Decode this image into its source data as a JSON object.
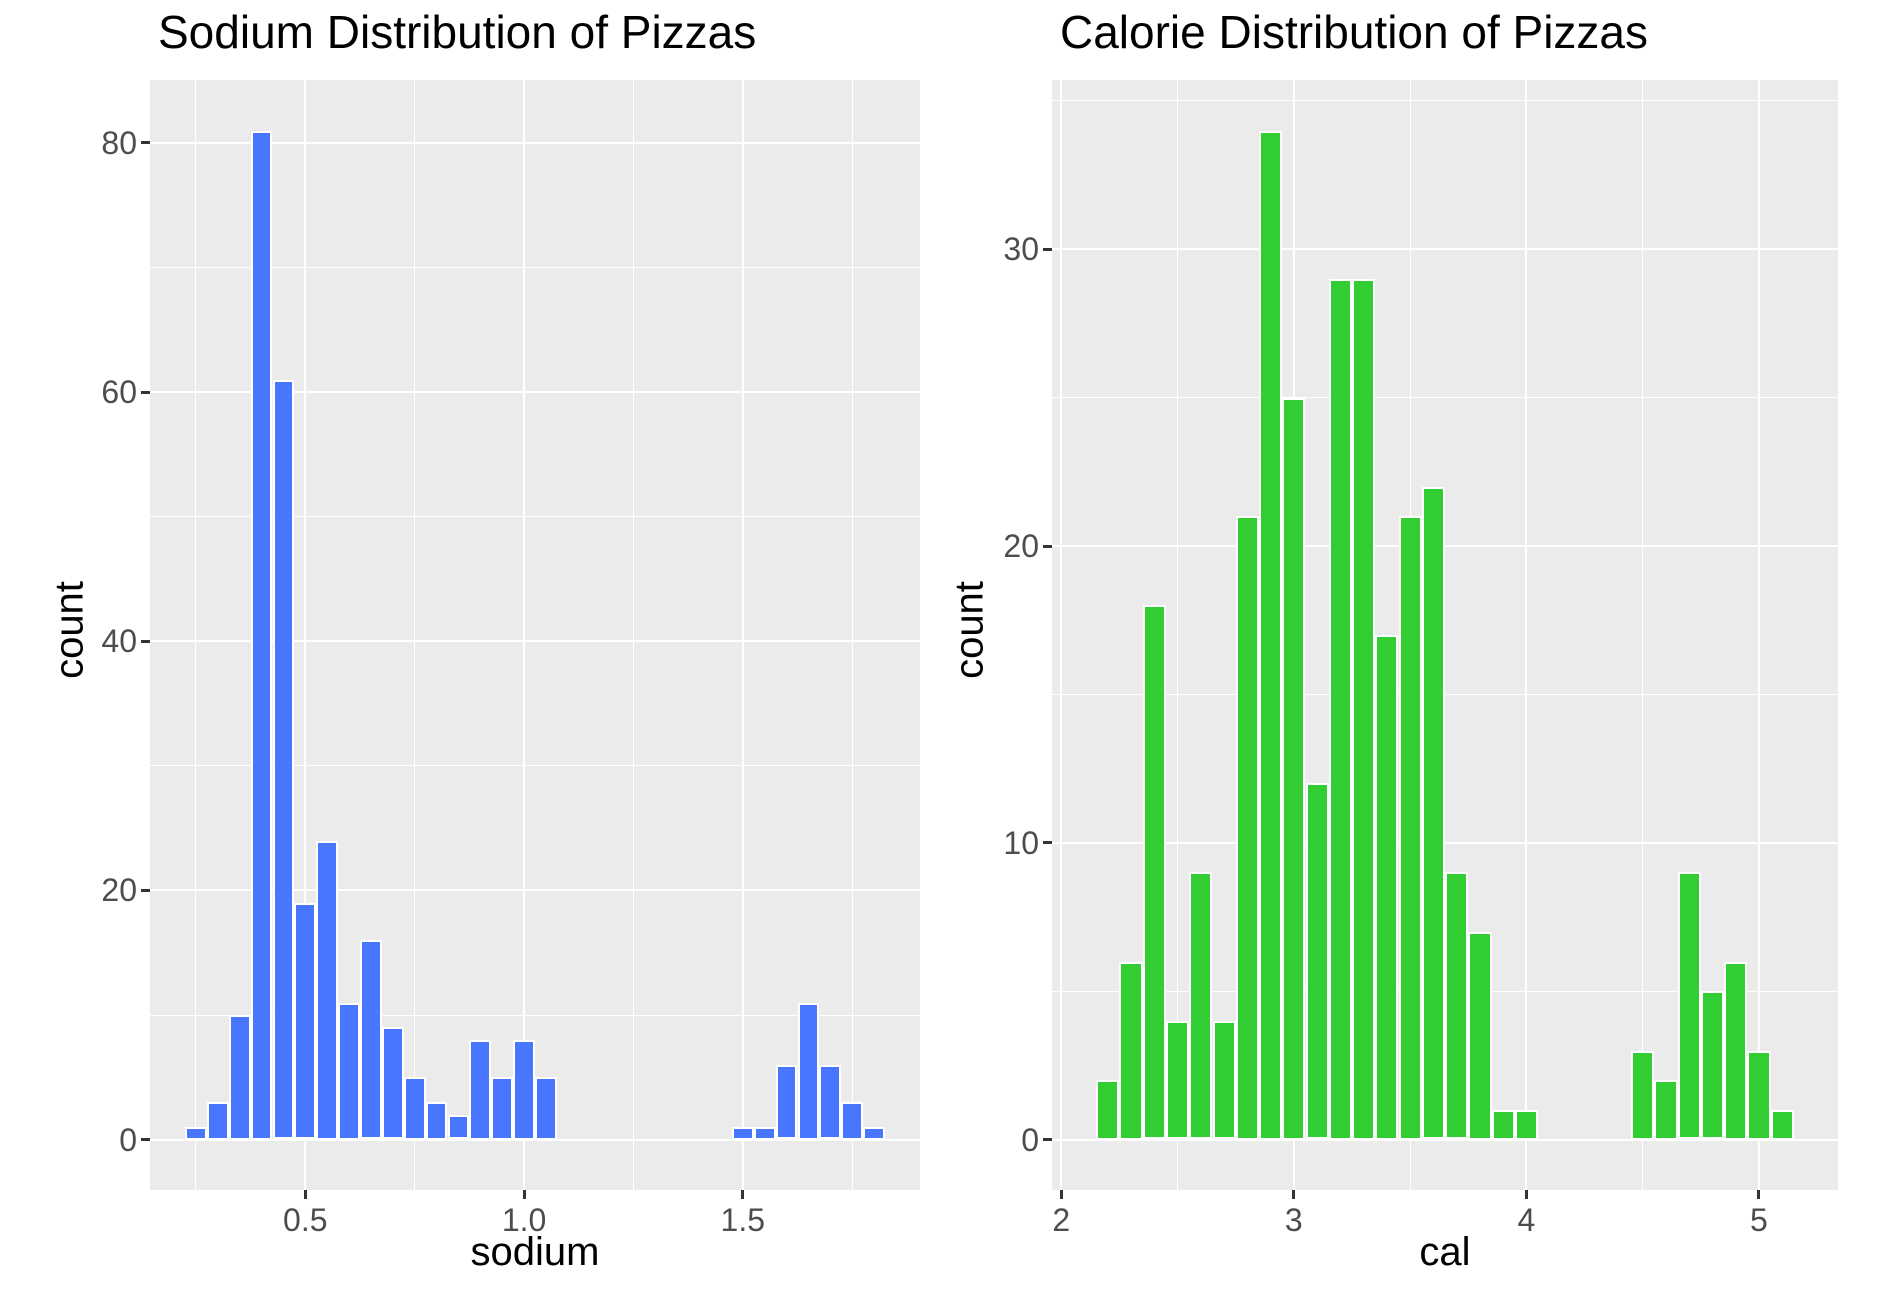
{
  "figure": {
    "background": "#FFFFFF",
    "panel_background": "#EBEBEB",
    "gridline_color": "#FFFFFF",
    "tick_mark_color": "#333333",
    "tick_label_color": "#4D4D4D",
    "text_color": "#000000"
  },
  "chart_data": [
    {
      "type": "bar",
      "title": "Sodium Distribution of Pizzas",
      "xlabel": "sodium",
      "ylabel": "count",
      "bar_color": "#4876FF",
      "bin_width": 0.05,
      "xlim": [
        0.145,
        1.905
      ],
      "ylim": [
        -4.05,
        85.05
      ],
      "grid": true,
      "legend": "none",
      "x_ticks": [
        0.5,
        1.0,
        1.5
      ],
      "x_tick_labels": [
        "0.5",
        "1.0",
        "1.5"
      ],
      "x_minor_gridlines": [
        0.25,
        0.75,
        1.25,
        1.75
      ],
      "y_ticks": [
        0,
        20,
        40,
        60,
        80
      ],
      "y_tick_labels": [
        "0",
        "20",
        "40",
        "60",
        "80"
      ],
      "y_minor_gridlines": [
        10,
        30,
        50,
        70
      ],
      "bin_centers": [
        0.25,
        0.3,
        0.35,
        0.4,
        0.45,
        0.5,
        0.55,
        0.6,
        0.65,
        0.7,
        0.75,
        0.8,
        0.85,
        0.9,
        0.95,
        1.0,
        1.05,
        1.1,
        1.15,
        1.2,
        1.25,
        1.3,
        1.35,
        1.4,
        1.45,
        1.5,
        1.55,
        1.6,
        1.65,
        1.7,
        1.75,
        1.8
      ],
      "counts": [
        1,
        3,
        10,
        81,
        61,
        19,
        24,
        11,
        16,
        9,
        5,
        3,
        2,
        8,
        5,
        8,
        5,
        0,
        0,
        0,
        0,
        0,
        0,
        0,
        0,
        1,
        1,
        6,
        11,
        6,
        3,
        1
      ]
    },
    {
      "type": "bar",
      "title": "Calorie Distribution of Pizzas",
      "xlabel": "cal",
      "ylabel": "count",
      "bar_color": "#32CD32",
      "bin_width": 0.1,
      "xlim": [
        1.96,
        5.34
      ],
      "ylim": [
        -1.7,
        35.7
      ],
      "grid": true,
      "legend": "none",
      "x_ticks": [
        2,
        3,
        4,
        5
      ],
      "x_tick_labels": [
        "2",
        "3",
        "4",
        "5"
      ],
      "x_minor_gridlines": [
        2.5,
        3.5,
        4.5
      ],
      "y_ticks": [
        0,
        10,
        20,
        30
      ],
      "y_tick_labels": [
        "0",
        "10",
        "20",
        "30"
      ],
      "y_minor_gridlines": [
        5,
        15,
        25,
        35
      ],
      "bin_centers": [
        2.2,
        2.3,
        2.4,
        2.5,
        2.6,
        2.7,
        2.8,
        2.9,
        3.0,
        3.1,
        3.2,
        3.3,
        3.4,
        3.5,
        3.6,
        3.7,
        3.8,
        3.9,
        4.0,
        4.1,
        4.2,
        4.3,
        4.4,
        4.5,
        4.6,
        4.7,
        4.8,
        4.9,
        5.0,
        5.1
      ],
      "counts": [
        2,
        6,
        18,
        4,
        9,
        4,
        21,
        34,
        25,
        12,
        29,
        29,
        17,
        21,
        22,
        9,
        7,
        1,
        1,
        0,
        0,
        0,
        0,
        3,
        2,
        9,
        5,
        6,
        3,
        1
      ]
    }
  ]
}
